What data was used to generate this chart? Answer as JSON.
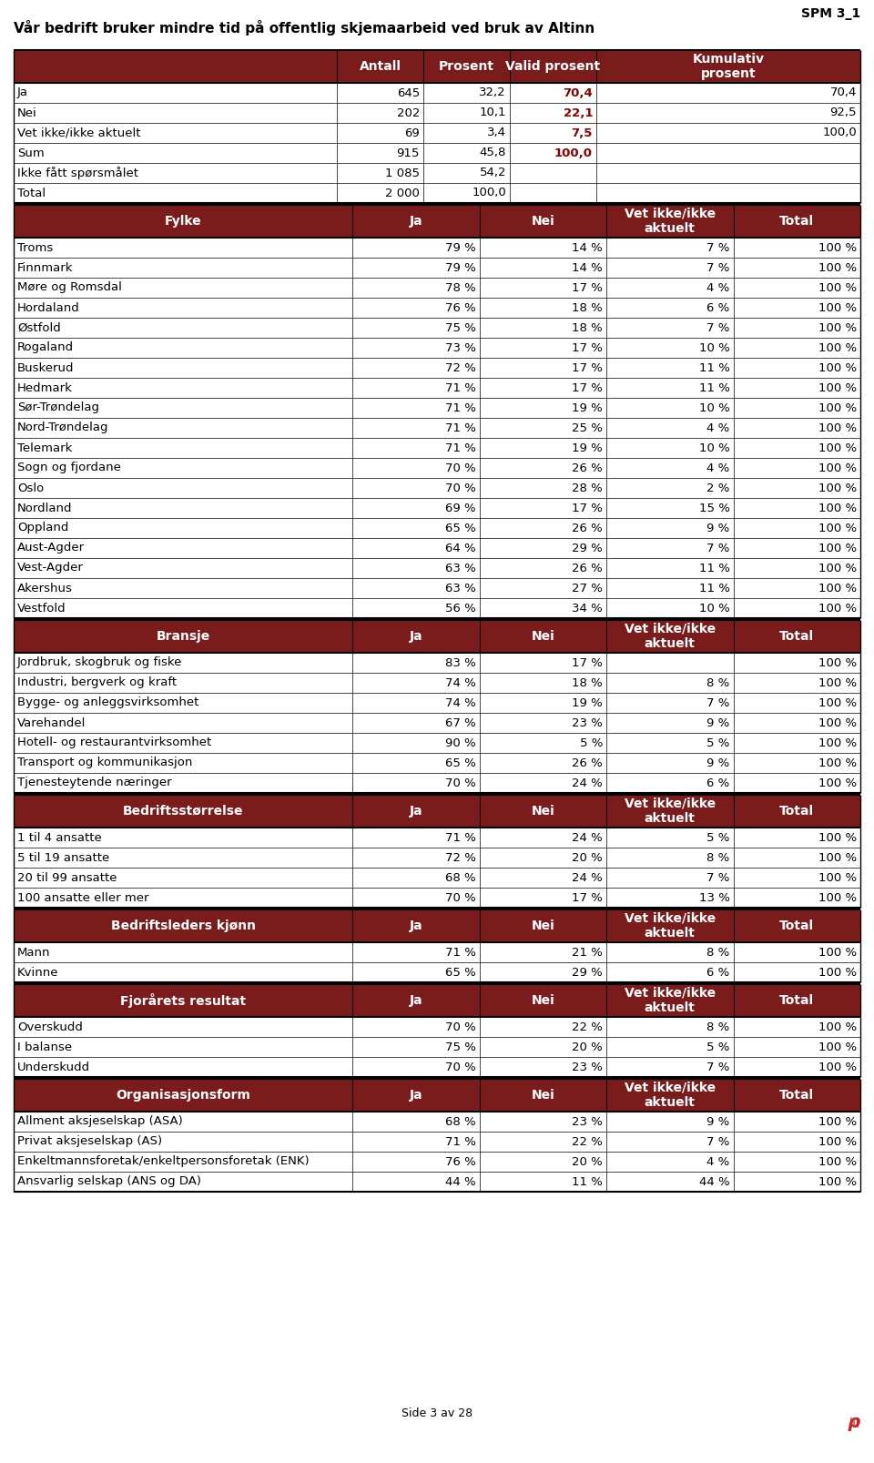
{
  "title": "Vår bedrift bruker mindre tid på offentlig skjemaarbeid ved bruk av Altinn",
  "spm_label": "SPM 3_1",
  "header_bg": "#7B1C1C",
  "header_fg": "#FFFFFF",
  "bold_color": "#8B0000",
  "top_section": {
    "headers": [
      "",
      "Antall",
      "Prosent",
      "Valid prosent",
      "Kumulativ\nprosent"
    ],
    "rows": [
      [
        "Ja",
        "645",
        "32,2",
        "70,4",
        "70,4"
      ],
      [
        "Nei",
        "202",
        "10,1",
        "22,1",
        "92,5"
      ],
      [
        "Vet ikke/ikke aktuelt",
        "69",
        "3,4",
        "7,5",
        "100,0"
      ],
      [
        "Sum",
        "915",
        "45,8",
        "100,0",
        ""
      ],
      [
        "Ikke fått spørsmålet",
        "1 085",
        "54,2",
        "",
        ""
      ],
      [
        "Total",
        "2 000",
        "100,0",
        "",
        ""
      ]
    ],
    "bold_col": 3
  },
  "sections": [
    {
      "header": [
        "Fylke",
        "Ja",
        "Nei",
        "Vet ikke/ikke\naktuelt",
        "Total"
      ],
      "rows": [
        [
          "Troms",
          "79 %",
          "14 %",
          "7 %",
          "100 %"
        ],
        [
          "Finnmark",
          "79 %",
          "14 %",
          "7 %",
          "100 %"
        ],
        [
          "Møre og Romsdal",
          "78 %",
          "17 %",
          "4 %",
          "100 %"
        ],
        [
          "Hordaland",
          "76 %",
          "18 %",
          "6 %",
          "100 %"
        ],
        [
          "Østfold",
          "75 %",
          "18 %",
          "7 %",
          "100 %"
        ],
        [
          "Rogaland",
          "73 %",
          "17 %",
          "10 %",
          "100 %"
        ],
        [
          "Buskerud",
          "72 %",
          "17 %",
          "11 %",
          "100 %"
        ],
        [
          "Hedmark",
          "71 %",
          "17 %",
          "11 %",
          "100 %"
        ],
        [
          "Sør-Trøndelag",
          "71 %",
          "19 %",
          "10 %",
          "100 %"
        ],
        [
          "Nord-Trøndelag",
          "71 %",
          "25 %",
          "4 %",
          "100 %"
        ],
        [
          "Telemark",
          "71 %",
          "19 %",
          "10 %",
          "100 %"
        ],
        [
          "Sogn og fjordane",
          "70 %",
          "26 %",
          "4 %",
          "100 %"
        ],
        [
          "Oslo",
          "70 %",
          "28 %",
          "2 %",
          "100 %"
        ],
        [
          "Nordland",
          "69 %",
          "17 %",
          "15 %",
          "100 %"
        ],
        [
          "Oppland",
          "65 %",
          "26 %",
          "9 %",
          "100 %"
        ],
        [
          "Aust-Agder",
          "64 %",
          "29 %",
          "7 %",
          "100 %"
        ],
        [
          "Vest-Agder",
          "63 %",
          "26 %",
          "11 %",
          "100 %"
        ],
        [
          "Akershus",
          "63 %",
          "27 %",
          "11 %",
          "100 %"
        ],
        [
          "Vestfold",
          "56 %",
          "34 %",
          "10 %",
          "100 %"
        ]
      ]
    },
    {
      "header": [
        "Bransje",
        "Ja",
        "Nei",
        "Vet ikke/ikke\naktuelt",
        "Total"
      ],
      "rows": [
        [
          "Jordbruk, skogbruk og fiske",
          "83 %",
          "17 %",
          "",
          "100 %"
        ],
        [
          "Industri, bergverk og kraft",
          "74 %",
          "18 %",
          "8 %",
          "100 %"
        ],
        [
          "Bygge- og anleggsvirksomhet",
          "74 %",
          "19 %",
          "7 %",
          "100 %"
        ],
        [
          "Varehandel",
          "67 %",
          "23 %",
          "9 %",
          "100 %"
        ],
        [
          "Hotell- og restaurantvirksomhet",
          "90 %",
          "5 %",
          "5 %",
          "100 %"
        ],
        [
          "Transport og kommunikasjon",
          "65 %",
          "26 %",
          "9 %",
          "100 %"
        ],
        [
          "Tjenesteytende næringer",
          "70 %",
          "24 %",
          "6 %",
          "100 %"
        ]
      ]
    },
    {
      "header": [
        "Bedriftsstørrelse",
        "Ja",
        "Nei",
        "Vet ikke/ikke\naktuelt",
        "Total"
      ],
      "rows": [
        [
          "1 til 4 ansatte",
          "71 %",
          "24 %",
          "5 %",
          "100 %"
        ],
        [
          "5 til 19 ansatte",
          "72 %",
          "20 %",
          "8 %",
          "100 %"
        ],
        [
          "20 til 99 ansatte",
          "68 %",
          "24 %",
          "7 %",
          "100 %"
        ],
        [
          "100 ansatte eller mer",
          "70 %",
          "17 %",
          "13 %",
          "100 %"
        ]
      ]
    },
    {
      "header": [
        "Bedriftsleders kjønn",
        "Ja",
        "Nei",
        "Vet ikke/ikke\naktuelt",
        "Total"
      ],
      "rows": [
        [
          "Mann",
          "71 %",
          "21 %",
          "8 %",
          "100 %"
        ],
        [
          "Kvinne",
          "65 %",
          "29 %",
          "6 %",
          "100 %"
        ]
      ]
    },
    {
      "header": [
        "Fjorårets resultat",
        "Ja",
        "Nei",
        "Vet ikke/ikke\naktuelt",
        "Total"
      ],
      "rows": [
        [
          "Overskudd",
          "70 %",
          "22 %",
          "8 %",
          "100 %"
        ],
        [
          "I balanse",
          "75 %",
          "20 %",
          "5 %",
          "100 %"
        ],
        [
          "Underskudd",
          "70 %",
          "23 %",
          "7 %",
          "100 %"
        ]
      ]
    },
    {
      "header": [
        "Organisasjonsform",
        "Ja",
        "Nei",
        "Vet ikke/ikke\naktuelt",
        "Total"
      ],
      "rows": [
        [
          "Allment aksjeselskap (ASA)",
          "68 %",
          "23 %",
          "9 %",
          "100 %"
        ],
        [
          "Privat aksjeselskap (AS)",
          "71 %",
          "22 %",
          "7 %",
          "100 %"
        ],
        [
          "Enkeltmannsforetak/enkeltpersonsforetak (ENK)",
          "76 %",
          "20 %",
          "4 %",
          "100 %"
        ],
        [
          "Ansvarlig selskap (ANS og DA)",
          "44 %",
          "11 %",
          "44 %",
          "100 %"
        ]
      ]
    }
  ],
  "footer": "Side 3 av 28"
}
